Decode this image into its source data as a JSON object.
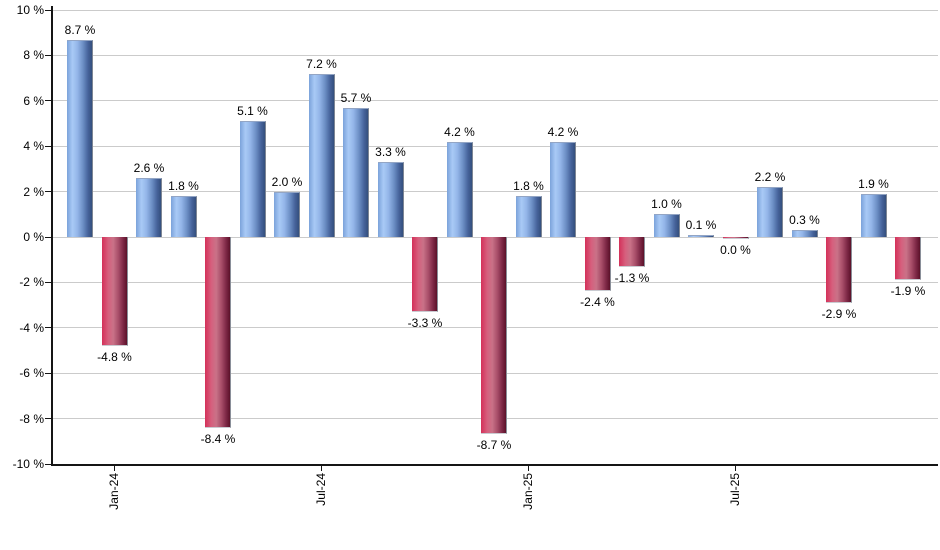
{
  "chart_data": {
    "type": "bar",
    "title": "",
    "ylim": [
      -10,
      10
    ],
    "grid": true,
    "legend": "none",
    "y_axis": {
      "ticks": [
        {
          "value": 10,
          "label": "10 %"
        },
        {
          "value": 8,
          "label": "8 %"
        },
        {
          "value": 6,
          "label": "6 %"
        },
        {
          "value": 4,
          "label": "4 %"
        },
        {
          "value": 2,
          "label": "2 %"
        },
        {
          "value": 0,
          "label": "0 %"
        },
        {
          "value": -2,
          "label": "-2 %"
        },
        {
          "value": -4,
          "label": "-4 %"
        },
        {
          "value": -6,
          "label": "-6 %"
        },
        {
          "value": -8,
          "label": "-8 %"
        },
        {
          "value": -10,
          "label": "-10 %"
        }
      ]
    },
    "x_axis": {
      "ticks": [
        {
          "bar_index": 1,
          "label": "Jan-24"
        },
        {
          "bar_index": 7,
          "label": "Jul-24"
        },
        {
          "bar_index": 13,
          "label": "Jan-25"
        },
        {
          "bar_index": 19,
          "label": "Jul-25"
        }
      ]
    },
    "bars": [
      {
        "label": "8.7 %",
        "value": 8.7,
        "polarity": "pos"
      },
      {
        "label": "-4.8 %",
        "value": -4.8,
        "polarity": "neg"
      },
      {
        "label": "2.6 %",
        "value": 2.6,
        "polarity": "pos"
      },
      {
        "label": "1.8 %",
        "value": 1.8,
        "polarity": "pos"
      },
      {
        "label": "-8.4 %",
        "value": -8.4,
        "polarity": "neg"
      },
      {
        "label": "5.1 %",
        "value": 5.1,
        "polarity": "pos"
      },
      {
        "label": "2.0 %",
        "value": 2.0,
        "polarity": "pos"
      },
      {
        "label": "7.2 %",
        "value": 7.2,
        "polarity": "pos"
      },
      {
        "label": "5.7 %",
        "value": 5.7,
        "polarity": "pos"
      },
      {
        "label": "3.3 %",
        "value": 3.3,
        "polarity": "pos"
      },
      {
        "label": "-3.3 %",
        "value": -3.3,
        "polarity": "neg"
      },
      {
        "label": "4.2 %",
        "value": 4.2,
        "polarity": "pos"
      },
      {
        "label": "-8.7 %",
        "value": -8.7,
        "polarity": "neg"
      },
      {
        "label": "1.8 %",
        "value": 1.8,
        "polarity": "pos"
      },
      {
        "label": "4.2 %",
        "value": 4.2,
        "polarity": "pos"
      },
      {
        "label": "-2.4 %",
        "value": -2.4,
        "polarity": "neg"
      },
      {
        "label": "-1.3 %",
        "value": -1.3,
        "polarity": "neg"
      },
      {
        "label": "1.0 %",
        "value": 1.0,
        "polarity": "pos"
      },
      {
        "label": "0.1 %",
        "value": 0.1,
        "polarity": "pos"
      },
      {
        "label": "0.0 %",
        "value": 0.0,
        "polarity": "neg"
      },
      {
        "label": "2.2 %",
        "value": 2.2,
        "polarity": "pos"
      },
      {
        "label": "0.3 %",
        "value": 0.3,
        "polarity": "pos"
      },
      {
        "label": "-2.9 %",
        "value": -2.9,
        "polarity": "neg"
      },
      {
        "label": "1.9 %",
        "value": 1.9,
        "polarity": "pos"
      },
      {
        "label": "-1.9 %",
        "value": -1.9,
        "polarity": "neg"
      }
    ],
    "colors": {
      "positive_light": "#a9caf6",
      "positive_dark": "#344f7d",
      "negative_light": "#d65f7d",
      "negative_dark": "#5c1129",
      "gridline": "#cbcbcb",
      "axis": "#000000",
      "label_text": "#000000",
      "background": "#ffffff"
    }
  }
}
